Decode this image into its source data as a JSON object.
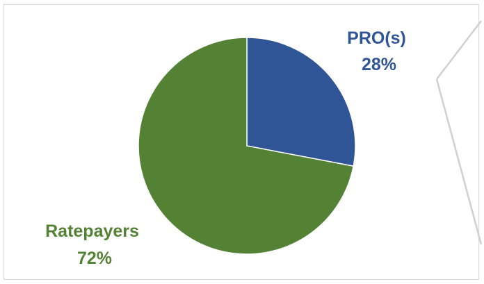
{
  "chart_data": {
    "type": "pie",
    "slices": [
      {
        "name": "PRO(s)",
        "value": 28,
        "value_label": "28%",
        "color": "#2f5597"
      },
      {
        "name": "Ratepayers",
        "value": 72,
        "value_label": "72%",
        "color": "#548235"
      }
    ],
    "start": "12 o'clock",
    "direction": "clockwise",
    "legend": "none"
  },
  "decor": {
    "frame_border_color": "#d9d9d9",
    "callout_line_color": "#d0d0d0"
  }
}
